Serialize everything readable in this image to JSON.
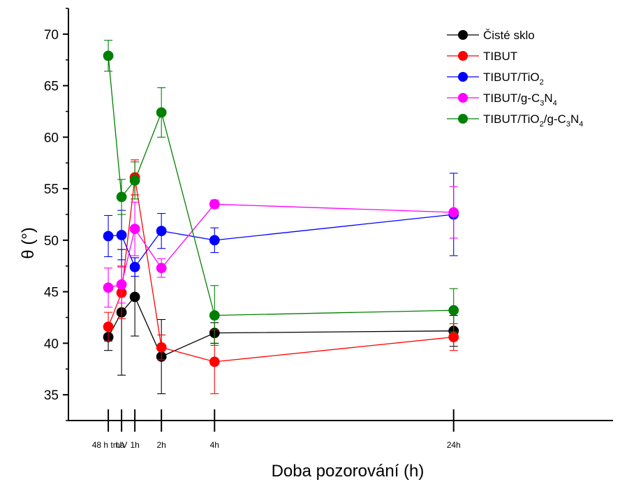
{
  "chart_data": {
    "type": "line",
    "xlabel": "Doba pozorování (h)",
    "ylabel": "θ (°)",
    "ylim": [
      32.5,
      72.5
    ],
    "yticks": [
      35,
      40,
      45,
      50,
      55,
      60,
      65,
      70
    ],
    "categories": [
      "48 h tma",
      "UV",
      "1h",
      "2h",
      "4h",
      "24h"
    ],
    "category_positions": [
      -2,
      -1,
      0,
      2,
      6,
      24
    ],
    "xlim": [
      -5,
      36
    ],
    "legend_position": "top-right",
    "error_bars": true,
    "series": [
      {
        "name": "Čisté sklo",
        "color": "#000000",
        "x": [
          -2,
          -1,
          0,
          2,
          6,
          24
        ],
        "y": [
          40.6,
          43.0,
          44.5,
          38.7,
          41.0,
          41.2
        ],
        "err": [
          1.3,
          6.1,
          3.8,
          3.6,
          1.0,
          1.5
        ]
      },
      {
        "name": "TIBUT",
        "color": "#ff0000",
        "x": [
          -2,
          -1,
          0,
          2,
          6,
          24
        ],
        "y": [
          41.6,
          44.9,
          56.1,
          39.6,
          38.2,
          40.6
        ],
        "err": [
          1.4,
          2.5,
          1.7,
          1.2,
          3.1,
          1.3
        ]
      },
      {
        "name": "TIBUT/TiO2",
        "legend_parts": [
          [
            "TIBUT/TiO",
            ""
          ],
          [
            "2",
            "sub"
          ]
        ],
        "color": "#0000ff",
        "x": [
          -2,
          -1,
          0,
          2,
          6,
          24
        ],
        "y": [
          50.4,
          50.5,
          47.4,
          50.9,
          50.0,
          52.5
        ],
        "err": [
          2.0,
          2.4,
          0.9,
          1.7,
          1.2,
          4.0
        ]
      },
      {
        "name": "TIBUT/g-C3N4",
        "legend_parts": [
          [
            "TIBUT/g-C",
            ""
          ],
          [
            "3",
            "sub"
          ],
          [
            "N",
            ""
          ],
          [
            "4",
            "sub"
          ]
        ],
        "color": "#ff00ff",
        "x": [
          -2,
          -1,
          0,
          2,
          6,
          24
        ],
        "y": [
          45.4,
          45.7,
          51.1,
          47.3,
          53.5,
          52.7
        ],
        "err": [
          1.9,
          1.8,
          2.6,
          0.9,
          0.4,
          2.5
        ]
      },
      {
        "name": "TIBUT/TiO2/g-C3N4",
        "legend_parts": [
          [
            "TIBUT/TiO",
            ""
          ],
          [
            "2",
            "sub"
          ],
          [
            "/g-C",
            ""
          ],
          [
            "3",
            "sub"
          ],
          [
            "N",
            ""
          ],
          [
            "4",
            "sub"
          ]
        ],
        "color": "#008000",
        "x": [
          -2,
          -1,
          0,
          2,
          6,
          24
        ],
        "y": [
          67.9,
          54.2,
          55.8,
          62.4,
          42.7,
          43.2
        ],
        "err": [
          1.5,
          1.7,
          1.8,
          2.4,
          2.9,
          2.1
        ]
      }
    ]
  }
}
